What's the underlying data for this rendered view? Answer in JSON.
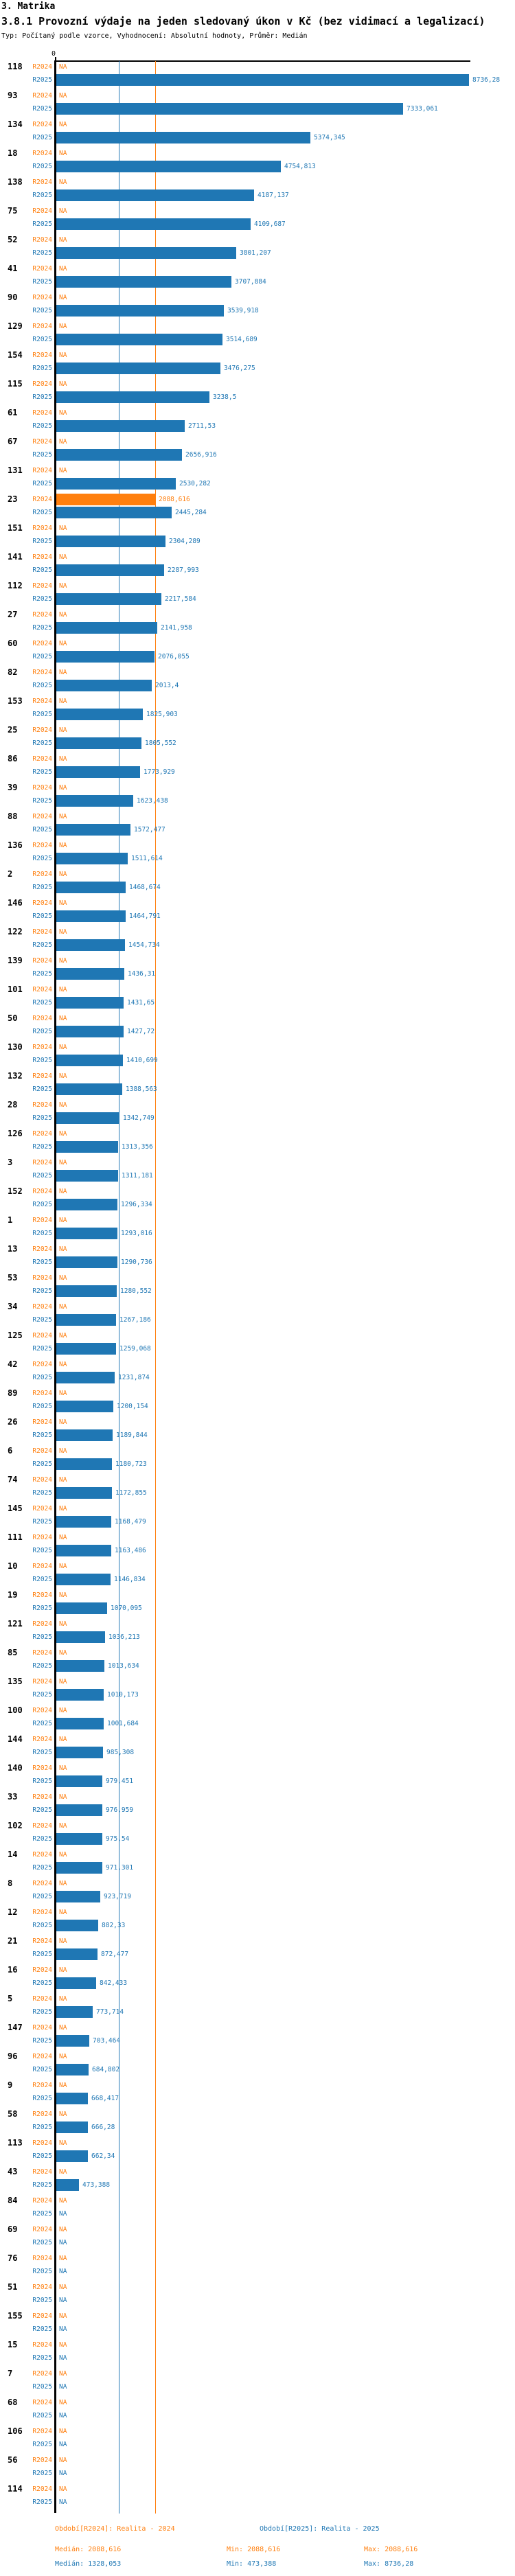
{
  "page": {
    "title1": "3. Matrika",
    "title2": "3.8.1 Provozní výdaje na jeden sledovaný úkon v Kč (bez vidimací a legalizací)",
    "subtitle": "Typ: Počítaný podle vzorce, Vyhodnocení: Absolutní hodnoty, Průměr: Medián"
  },
  "axis": {
    "zero_label": "0"
  },
  "colors": {
    "r2024": "#ff7f0e",
    "r2025": "#1f77b4",
    "axis": "#000000"
  },
  "legend": {
    "r2024": {
      "title": "Období[R2024]: Realita - 2024",
      "median": "Medián: 2088,616",
      "min": "Min: 2088,616",
      "max": "Max: 2088,616"
    },
    "r2025": {
      "title": "Období[R2025]: Realita - 2025",
      "median": "Medián: 1328,053",
      "min": "Min: 473,388",
      "max": "Max: 8736,28"
    }
  },
  "chart_data": {
    "type": "bar",
    "orientation": "horizontal",
    "title": "3.8.1 Provozní výdaje na jeden sledovaný úkon v Kč (bez vidimací a legalizací)",
    "series_labels": [
      "R2024",
      "R2025"
    ],
    "xlim": [
      0,
      8800
    ],
    "grid": false,
    "reference_lines": [
      {
        "series": "R2024",
        "stat": "Medián",
        "value": 2088.616
      },
      {
        "series": "R2025",
        "stat": "Medián",
        "value": 1328.053
      }
    ],
    "na_text": "NA",
    "rows": [
      {
        "id": "118",
        "v24": null,
        "l24": "NA",
        "v25": 8736.28,
        "l25": "8736,28"
      },
      {
        "id": "93",
        "v24": null,
        "l24": "NA",
        "v25": 7333.061,
        "l25": "7333,061"
      },
      {
        "id": "134",
        "v24": null,
        "l24": "NA",
        "v25": 5374.345,
        "l25": "5374,345"
      },
      {
        "id": "18",
        "v24": null,
        "l24": "NA",
        "v25": 4754.813,
        "l25": "4754,813"
      },
      {
        "id": "138",
        "v24": null,
        "l24": "NA",
        "v25": 4187.137,
        "l25": "4187,137"
      },
      {
        "id": "75",
        "v24": null,
        "l24": "NA",
        "v25": 4109.687,
        "l25": "4109,687"
      },
      {
        "id": "52",
        "v24": null,
        "l24": "NA",
        "v25": 3801.207,
        "l25": "3801,207"
      },
      {
        "id": "41",
        "v24": null,
        "l24": "NA",
        "v25": 3707.884,
        "l25": "3707,884"
      },
      {
        "id": "90",
        "v24": null,
        "l24": "NA",
        "v25": 3539.918,
        "l25": "3539,918"
      },
      {
        "id": "129",
        "v24": null,
        "l24": "NA",
        "v25": 3514.689,
        "l25": "3514,689"
      },
      {
        "id": "154",
        "v24": null,
        "l24": "NA",
        "v25": 3476.275,
        "l25": "3476,275"
      },
      {
        "id": "115",
        "v24": null,
        "l24": "NA",
        "v25": 3238.5,
        "l25": "3238,5"
      },
      {
        "id": "61",
        "v24": null,
        "l24": "NA",
        "v25": 2711.53,
        "l25": "2711,53"
      },
      {
        "id": "67",
        "v24": null,
        "l24": "NA",
        "v25": 2656.916,
        "l25": "2656,916"
      },
      {
        "id": "131",
        "v24": null,
        "l24": "NA",
        "v25": 2530.282,
        "l25": "2530,282"
      },
      {
        "id": "23",
        "v24": 2088.616,
        "l24": "2088,616",
        "v25": 2445.284,
        "l25": "2445,284"
      },
      {
        "id": "151",
        "v24": null,
        "l24": "NA",
        "v25": 2304.289,
        "l25": "2304,289"
      },
      {
        "id": "141",
        "v24": null,
        "l24": "NA",
        "v25": 2287.993,
        "l25": "2287,993"
      },
      {
        "id": "112",
        "v24": null,
        "l24": "NA",
        "v25": 2217.584,
        "l25": "2217,584"
      },
      {
        "id": "27",
        "v24": null,
        "l24": "NA",
        "v25": 2141.958,
        "l25": "2141,958"
      },
      {
        "id": "60",
        "v24": null,
        "l24": "NA",
        "v25": 2076.055,
        "l25": "2076,055"
      },
      {
        "id": "82",
        "v24": null,
        "l24": "NA",
        "v25": 2013.4,
        "l25": "2013,4"
      },
      {
        "id": "153",
        "v24": null,
        "l24": "NA",
        "v25": 1825.903,
        "l25": "1825,903"
      },
      {
        "id": "25",
        "v24": null,
        "l24": "NA",
        "v25": 1805.552,
        "l25": "1805,552"
      },
      {
        "id": "86",
        "v24": null,
        "l24": "NA",
        "v25": 1773.929,
        "l25": "1773,929"
      },
      {
        "id": "39",
        "v24": null,
        "l24": "NA",
        "v25": 1623.438,
        "l25": "1623,438"
      },
      {
        "id": "88",
        "v24": null,
        "l24": "NA",
        "v25": 1572.477,
        "l25": "1572,477"
      },
      {
        "id": "136",
        "v24": null,
        "l24": "NA",
        "v25": 1511.614,
        "l25": "1511,614"
      },
      {
        "id": "2",
        "v24": null,
        "l24": "NA",
        "v25": 1468.674,
        "l25": "1468,674"
      },
      {
        "id": "146",
        "v24": null,
        "l24": "NA",
        "v25": 1464.791,
        "l25": "1464,791"
      },
      {
        "id": "122",
        "v24": null,
        "l24": "NA",
        "v25": 1454.734,
        "l25": "1454,734"
      },
      {
        "id": "139",
        "v24": null,
        "l24": "NA",
        "v25": 1436.31,
        "l25": "1436,31"
      },
      {
        "id": "101",
        "v24": null,
        "l24": "NA",
        "v25": 1431.65,
        "l25": "1431,65"
      },
      {
        "id": "50",
        "v24": null,
        "l24": "NA",
        "v25": 1427.72,
        "l25": "1427,72"
      },
      {
        "id": "130",
        "v24": null,
        "l24": "NA",
        "v25": 1410.699,
        "l25": "1410,699"
      },
      {
        "id": "132",
        "v24": null,
        "l24": "NA",
        "v25": 1388.563,
        "l25": "1388,563"
      },
      {
        "id": "28",
        "v24": null,
        "l24": "NA",
        "v25": 1342.749,
        "l25": "1342,749"
      },
      {
        "id": "126",
        "v24": null,
        "l24": "NA",
        "v25": 1313.356,
        "l25": "1313,356"
      },
      {
        "id": "3",
        "v24": null,
        "l24": "NA",
        "v25": 1311.181,
        "l25": "1311,181"
      },
      {
        "id": "152",
        "v24": null,
        "l24": "NA",
        "v25": 1296.334,
        "l25": "1296,334"
      },
      {
        "id": "1",
        "v24": null,
        "l24": "NA",
        "v25": 1293.016,
        "l25": "1293,016"
      },
      {
        "id": "13",
        "v24": null,
        "l24": "NA",
        "v25": 1290.736,
        "l25": "1290,736"
      },
      {
        "id": "53",
        "v24": null,
        "l24": "NA",
        "v25": 1280.552,
        "l25": "1280,552"
      },
      {
        "id": "34",
        "v24": null,
        "l24": "NA",
        "v25": 1267.186,
        "l25": "1267,186"
      },
      {
        "id": "125",
        "v24": null,
        "l24": "NA",
        "v25": 1259.068,
        "l25": "1259,068"
      },
      {
        "id": "42",
        "v24": null,
        "l24": "NA",
        "v25": 1231.874,
        "l25": "1231,874"
      },
      {
        "id": "89",
        "v24": null,
        "l24": "NA",
        "v25": 1200.154,
        "l25": "1200,154"
      },
      {
        "id": "26",
        "v24": null,
        "l24": "NA",
        "v25": 1189.844,
        "l25": "1189,844"
      },
      {
        "id": "6",
        "v24": null,
        "l24": "NA",
        "v25": 1180.723,
        "l25": "1180,723"
      },
      {
        "id": "74",
        "v24": null,
        "l24": "NA",
        "v25": 1172.855,
        "l25": "1172,855"
      },
      {
        "id": "145",
        "v24": null,
        "l24": "NA",
        "v25": 1168.479,
        "l25": "1168,479"
      },
      {
        "id": "111",
        "v24": null,
        "l24": "NA",
        "v25": 1163.486,
        "l25": "1163,486"
      },
      {
        "id": "10",
        "v24": null,
        "l24": "NA",
        "v25": 1146.834,
        "l25": "1146,834"
      },
      {
        "id": "19",
        "v24": null,
        "l24": "NA",
        "v25": 1070.095,
        "l25": "1070,095"
      },
      {
        "id": "121",
        "v24": null,
        "l24": "NA",
        "v25": 1036.213,
        "l25": "1036,213"
      },
      {
        "id": "85",
        "v24": null,
        "l24": "NA",
        "v25": 1013.634,
        "l25": "1013,634"
      },
      {
        "id": "135",
        "v24": null,
        "l24": "NA",
        "v25": 1010.173,
        "l25": "1010,173"
      },
      {
        "id": "100",
        "v24": null,
        "l24": "NA",
        "v25": 1001.684,
        "l25": "1001,684"
      },
      {
        "id": "144",
        "v24": null,
        "l24": "NA",
        "v25": 985.308,
        "l25": "985,308"
      },
      {
        "id": "140",
        "v24": null,
        "l24": "NA",
        "v25": 979.451,
        "l25": "979,451"
      },
      {
        "id": "33",
        "v24": null,
        "l24": "NA",
        "v25": 976.959,
        "l25": "976,959"
      },
      {
        "id": "102",
        "v24": null,
        "l24": "NA",
        "v25": 975.54,
        "l25": "975,54"
      },
      {
        "id": "14",
        "v24": null,
        "l24": "NA",
        "v25": 971.301,
        "l25": "971,301"
      },
      {
        "id": "8",
        "v24": null,
        "l24": "NA",
        "v25": 923.719,
        "l25": "923,719"
      },
      {
        "id": "12",
        "v24": null,
        "l24": "NA",
        "v25": 882.33,
        "l25": "882,33"
      },
      {
        "id": "21",
        "v24": null,
        "l24": "NA",
        "v25": 872.477,
        "l25": "872,477"
      },
      {
        "id": "16",
        "v24": null,
        "l24": "NA",
        "v25": 842.433,
        "l25": "842,433"
      },
      {
        "id": "5",
        "v24": null,
        "l24": "NA",
        "v25": 773.714,
        "l25": "773,714"
      },
      {
        "id": "147",
        "v24": null,
        "l24": "NA",
        "v25": 703.464,
        "l25": "703,464"
      },
      {
        "id": "96",
        "v24": null,
        "l24": "NA",
        "v25": 684.802,
        "l25": "684,802"
      },
      {
        "id": "9",
        "v24": null,
        "l24": "NA",
        "v25": 668.417,
        "l25": "668,417"
      },
      {
        "id": "58",
        "v24": null,
        "l24": "NA",
        "v25": 666.28,
        "l25": "666,28"
      },
      {
        "id": "113",
        "v24": null,
        "l24": "NA",
        "v25": 662.34,
        "l25": "662,34"
      },
      {
        "id": "43",
        "v24": null,
        "l24": "NA",
        "v25": 473.388,
        "l25": "473,388"
      },
      {
        "id": "84",
        "v24": null,
        "l24": "NA",
        "v25": null,
        "l25": "NA"
      },
      {
        "id": "69",
        "v24": null,
        "l24": "NA",
        "v25": null,
        "l25": "NA"
      },
      {
        "id": "76",
        "v24": null,
        "l24": "NA",
        "v25": null,
        "l25": "NA"
      },
      {
        "id": "51",
        "v24": null,
        "l24": "NA",
        "v25": null,
        "l25": "NA"
      },
      {
        "id": "155",
        "v24": null,
        "l24": "NA",
        "v25": null,
        "l25": "NA"
      },
      {
        "id": "15",
        "v24": null,
        "l24": "NA",
        "v25": null,
        "l25": "NA"
      },
      {
        "id": "7",
        "v24": null,
        "l24": "NA",
        "v25": null,
        "l25": "NA"
      },
      {
        "id": "68",
        "v24": null,
        "l24": "NA",
        "v25": null,
        "l25": "NA"
      },
      {
        "id": "106",
        "v24": null,
        "l24": "NA",
        "v25": null,
        "l25": "NA"
      },
      {
        "id": "56",
        "v24": null,
        "l24": "NA",
        "v25": null,
        "l25": "NA"
      },
      {
        "id": "114",
        "v24": null,
        "l24": "NA",
        "v25": null,
        "l25": "NA"
      }
    ]
  }
}
